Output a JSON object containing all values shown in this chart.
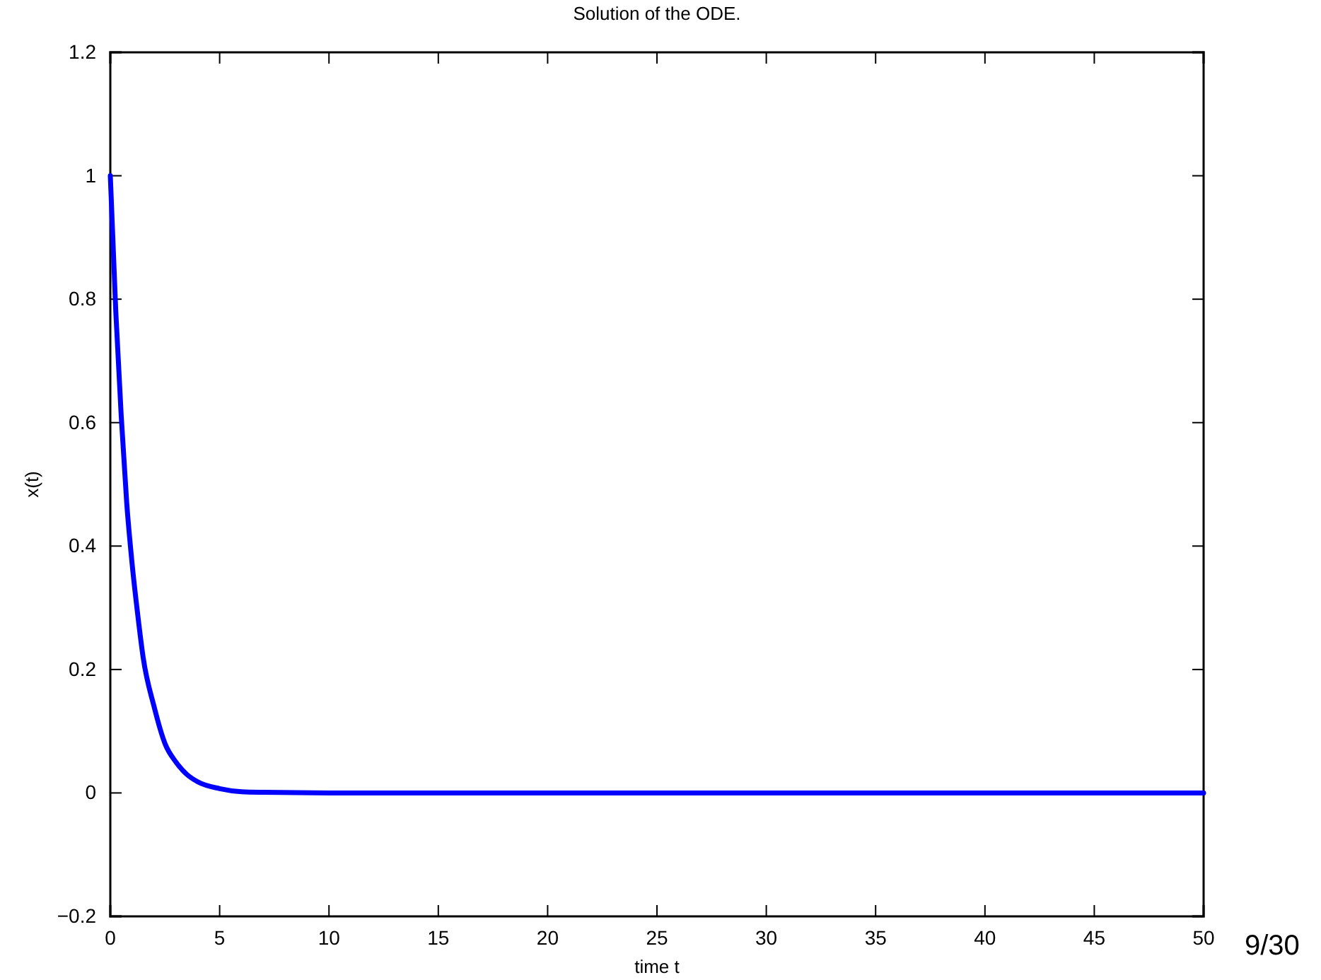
{
  "chart_data": {
    "type": "line",
    "title": "Solution of the ODE.",
    "xlabel": "time t",
    "ylabel": "x(t)",
    "x": [
      0,
      0.25,
      0.5,
      0.75,
      1,
      1.25,
      1.5,
      2,
      2.5,
      3,
      3.5,
      4,
      5,
      6,
      7,
      10,
      20,
      30,
      40,
      50
    ],
    "series": [
      {
        "color": "#0000ff",
        "values": [
          1,
          0.78,
          0.61,
          0.47,
          0.37,
          0.29,
          0.22,
          0.14,
          0.08,
          0.05,
          0.03,
          0.018,
          0.007,
          0.002,
          0.001,
          0,
          0,
          0,
          0,
          0
        ]
      }
    ],
    "xlim": [
      0,
      50
    ],
    "xticks": [
      0,
      5,
      10,
      15,
      20,
      25,
      30,
      35,
      40,
      45,
      50
    ],
    "ylim": [
      -0.2,
      1.2
    ],
    "yticks": [
      {
        "value": -0.2,
        "label": "−0.2"
      },
      0,
      0.2,
      0.4,
      0.6,
      0.8,
      1,
      1.2
    ],
    "grid": false,
    "marker": "none",
    "line_style": "solid",
    "annotations": [
      "9/30"
    ]
  }
}
